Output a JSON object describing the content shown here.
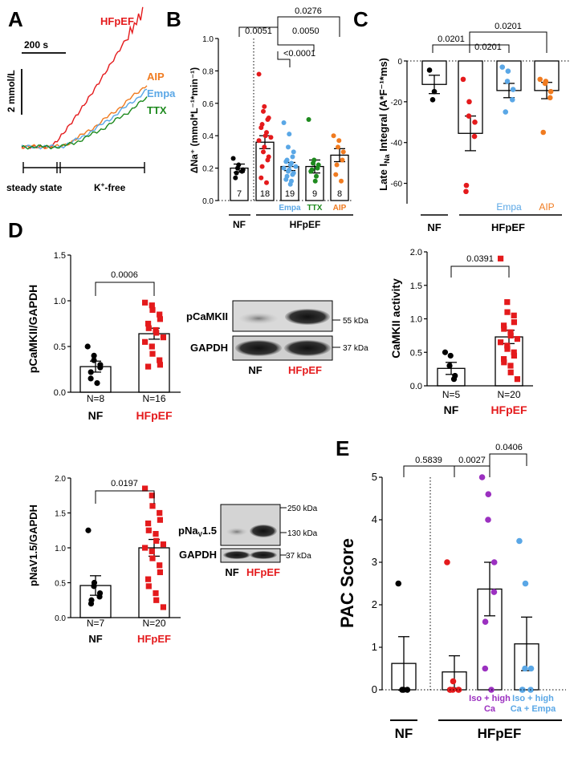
{
  "colors": {
    "nf": "#000000",
    "hfpef": "#e41a1c",
    "empa": "#5aa7e6",
    "ttx": "#1e8a1e",
    "aip": "#f07b20",
    "iso": "#9b30c0"
  },
  "panelA": {
    "letter": "A",
    "scale_time": "200 s",
    "scale_conc": "2 mmol/L",
    "labels": {
      "hfpef": "HFpEF",
      "aip": "AIP",
      "empa": "Empa",
      "ttx": "TTX"
    },
    "steady": "steady state",
    "kfree_pre": "K",
    "kfree_sup": "+",
    "kfree_post": "-free"
  },
  "panelB": {
    "letter": "B",
    "ylabel": "ΔNa⁺ (mmol*L⁻¹*min⁻¹)",
    "ylim": [
      0,
      1.0
    ],
    "yticks": [
      "0.0",
      "0.2",
      "0.4",
      "0.6",
      "0.8",
      "1.0"
    ],
    "groups": [
      {
        "name": "",
        "n": "7",
        "mean": 0.2,
        "sem": 0.025,
        "points": [
          0.26,
          0.22,
          0.2,
          0.19,
          0.18,
          0.17,
          0.14
        ]
      },
      {
        "name": "",
        "n": "18",
        "mean": 0.36,
        "sem": 0.04,
        "points": [
          0.78,
          0.58,
          0.55,
          0.51,
          0.5,
          0.47,
          0.45,
          0.42,
          0.4,
          0.39,
          0.37,
          0.33,
          0.3,
          0.27,
          0.25,
          0.21,
          0.14,
          0.11
        ]
      },
      {
        "name": "Empa",
        "n": "19",
        "mean": 0.21,
        "sem": 0.025,
        "points": [
          0.48,
          0.41,
          0.33,
          0.3,
          0.27,
          0.25,
          0.24,
          0.23,
          0.22,
          0.21,
          0.2,
          0.19,
          0.18,
          0.17,
          0.16,
          0.15,
          0.13,
          0.12,
          0.1
        ]
      },
      {
        "name": "TTX",
        "n": "9",
        "mean": 0.21,
        "sem": 0.04,
        "points": [
          0.5,
          0.25,
          0.23,
          0.22,
          0.2,
          0.19,
          0.18,
          0.15,
          0.12
        ]
      },
      {
        "name": "AIP",
        "n": "8",
        "mean": 0.28,
        "sem": 0.04,
        "points": [
          0.4,
          0.37,
          0.33,
          0.3,
          0.25,
          0.22,
          0.16,
          0.12
        ]
      }
    ],
    "pvalues": [
      "0.0051",
      "0.0276",
      "0.0050",
      "<0.0001"
    ],
    "xgroups": [
      "NF",
      "HFpEF"
    ]
  },
  "panelC": {
    "letter": "C",
    "ylabel_pre": "Late I",
    "ylabel_sub": "Na",
    "ylabel_post": " Integral (A*F⁻¹*ms)",
    "ylim": [
      -70,
      0
    ],
    "yticks": [
      "0",
      "-20",
      "-40",
      "-60"
    ],
    "groups": [
      {
        "name": "",
        "mean": -11.5,
        "sem": 4.5,
        "points": [
          -4.5,
          -15,
          -19
        ]
      },
      {
        "name": "",
        "mean": -35.5,
        "sem": 8.5,
        "points": [
          -9,
          -20,
          -27,
          -30,
          -37,
          -61,
          -64
        ]
      },
      {
        "name": "Empa",
        "mean": -14.5,
        "sem": 3.5,
        "points": [
          -3,
          -5,
          -10,
          -14,
          -19,
          -25
        ]
      },
      {
        "name": "AIP",
        "mean": -14.5,
        "sem": 4,
        "points": [
          -9,
          -10,
          -11,
          -15,
          -18,
          -35
        ]
      }
    ],
    "pvalues": [
      "0.0201",
      "0.0201",
      "0.0201"
    ],
    "xgroups": [
      "NF",
      "HFpEF"
    ]
  },
  "panelD1": {
    "letter": "D",
    "ylabel": "pCaMKII/GAPDH",
    "ylim": [
      0,
      1.5
    ],
    "yticks": [
      "0.0",
      "0.5",
      "1.0",
      "1.5"
    ],
    "groups": [
      {
        "name": "NF",
        "nlabel": "N=8",
        "mean": 0.28,
        "sem": 0.06,
        "points": [
          0.5,
          0.4,
          0.35,
          0.3,
          0.27,
          0.22,
          0.15,
          0.1
        ]
      },
      {
        "name": "HFpEF",
        "nlabel": "N=16",
        "mean": 0.64,
        "sem": 0.06,
        "points": [
          0.98,
          0.95,
          0.9,
          0.85,
          0.8,
          0.75,
          0.7,
          0.68,
          0.65,
          0.6,
          0.55,
          0.5,
          0.42,
          0.35,
          0.3,
          0.28
        ]
      }
    ],
    "pvalue": "0.0006"
  },
  "blot1": {
    "band1": "pCaMKII",
    "band2": "GAPDH",
    "kda1": "55 kDa",
    "kda2": "37 kDa",
    "lane1": "NF",
    "lane2": "HFpEF"
  },
  "panelD2": {
    "ylabel": "CaMKII activity",
    "ylim": [
      0,
      2.0
    ],
    "yticks": [
      "0.0",
      "0.5",
      "1.0",
      "1.5",
      "2.0"
    ],
    "groups": [
      {
        "name": "NF",
        "nlabel": "N=5",
        "mean": 0.26,
        "sem": 0.09,
        "points": [
          0.5,
          0.45,
          0.3,
          0.15,
          0.1
        ]
      },
      {
        "name": "HFpEF",
        "nlabel": "N=20",
        "mean": 0.73,
        "sem": 0.1,
        "points": [
          1.9,
          1.25,
          1.1,
          1.05,
          0.95,
          0.9,
          0.85,
          0.8,
          0.75,
          0.7,
          0.65,
          0.6,
          0.55,
          0.5,
          0.45,
          0.4,
          0.35,
          0.3,
          0.2,
          0.1
        ]
      }
    ],
    "pvalue": "0.0391"
  },
  "panelD3": {
    "ylabel": "pNaV1.5/GAPDH",
    "ylim": [
      0,
      2.0
    ],
    "yticks": [
      "0.0",
      "0.5",
      "1.0",
      "1.5",
      "2.0"
    ],
    "groups": [
      {
        "name": "NF",
        "nlabel": "N=7",
        "mean": 0.46,
        "sem": 0.14,
        "points": [
          1.25,
          0.5,
          0.45,
          0.35,
          0.3,
          0.25,
          0.2
        ]
      },
      {
        "name": "HFpEF",
        "nlabel": "N=20",
        "mean": 1.0,
        "sem": 0.12,
        "points": [
          1.85,
          1.75,
          1.6,
          1.5,
          1.4,
          1.35,
          1.25,
          1.2,
          1.1,
          1.05,
          1.0,
          0.95,
          0.85,
          0.75,
          0.65,
          0.55,
          0.45,
          0.35,
          0.25,
          0.15
        ]
      }
    ],
    "pvalue": "0.0197"
  },
  "blot2": {
    "band1_pre": "pNa",
    "band1_sub": "V",
    "band1_post": "1.5",
    "band2": "GAPDH",
    "kda1": "250 kDa",
    "kda2": "130 kDa",
    "kda3": "37 kDa",
    "lane1": "NF",
    "lane2": "HFpEF"
  },
  "panelE": {
    "letter": "E",
    "ylabel": "PAC Score",
    "ylim": [
      0,
      5
    ],
    "yticks": [
      "0",
      "1",
      "2",
      "3",
      "4",
      "5"
    ],
    "groups": [
      {
        "name": "",
        "mean": 0.62,
        "sem": 0.63,
        "points": [
          2.5,
          0,
          0,
          0
        ]
      },
      {
        "name": "",
        "mean": 0.42,
        "sem": 0.38,
        "points": [
          3,
          0.2,
          0,
          0,
          0,
          0,
          0
        ]
      },
      {
        "name_line1": "Iso + high",
        "name_line2": "Ca",
        "mean": 2.37,
        "sem": 0.63,
        "points": [
          5,
          4.6,
          4,
          3,
          2.3,
          1.6,
          0.5,
          0
        ]
      },
      {
        "name_line1": "Iso + high",
        "name_line2": "Ca + Empa",
        "mean": 1.08,
        "sem": 0.63,
        "points": [
          3.5,
          2.5,
          0.5,
          0.5,
          0,
          0,
          0
        ]
      }
    ],
    "pvalues": [
      "0.5839",
      "0.0027",
      "0.0406"
    ],
    "xgroups": [
      "NF",
      "HFpEF"
    ]
  }
}
